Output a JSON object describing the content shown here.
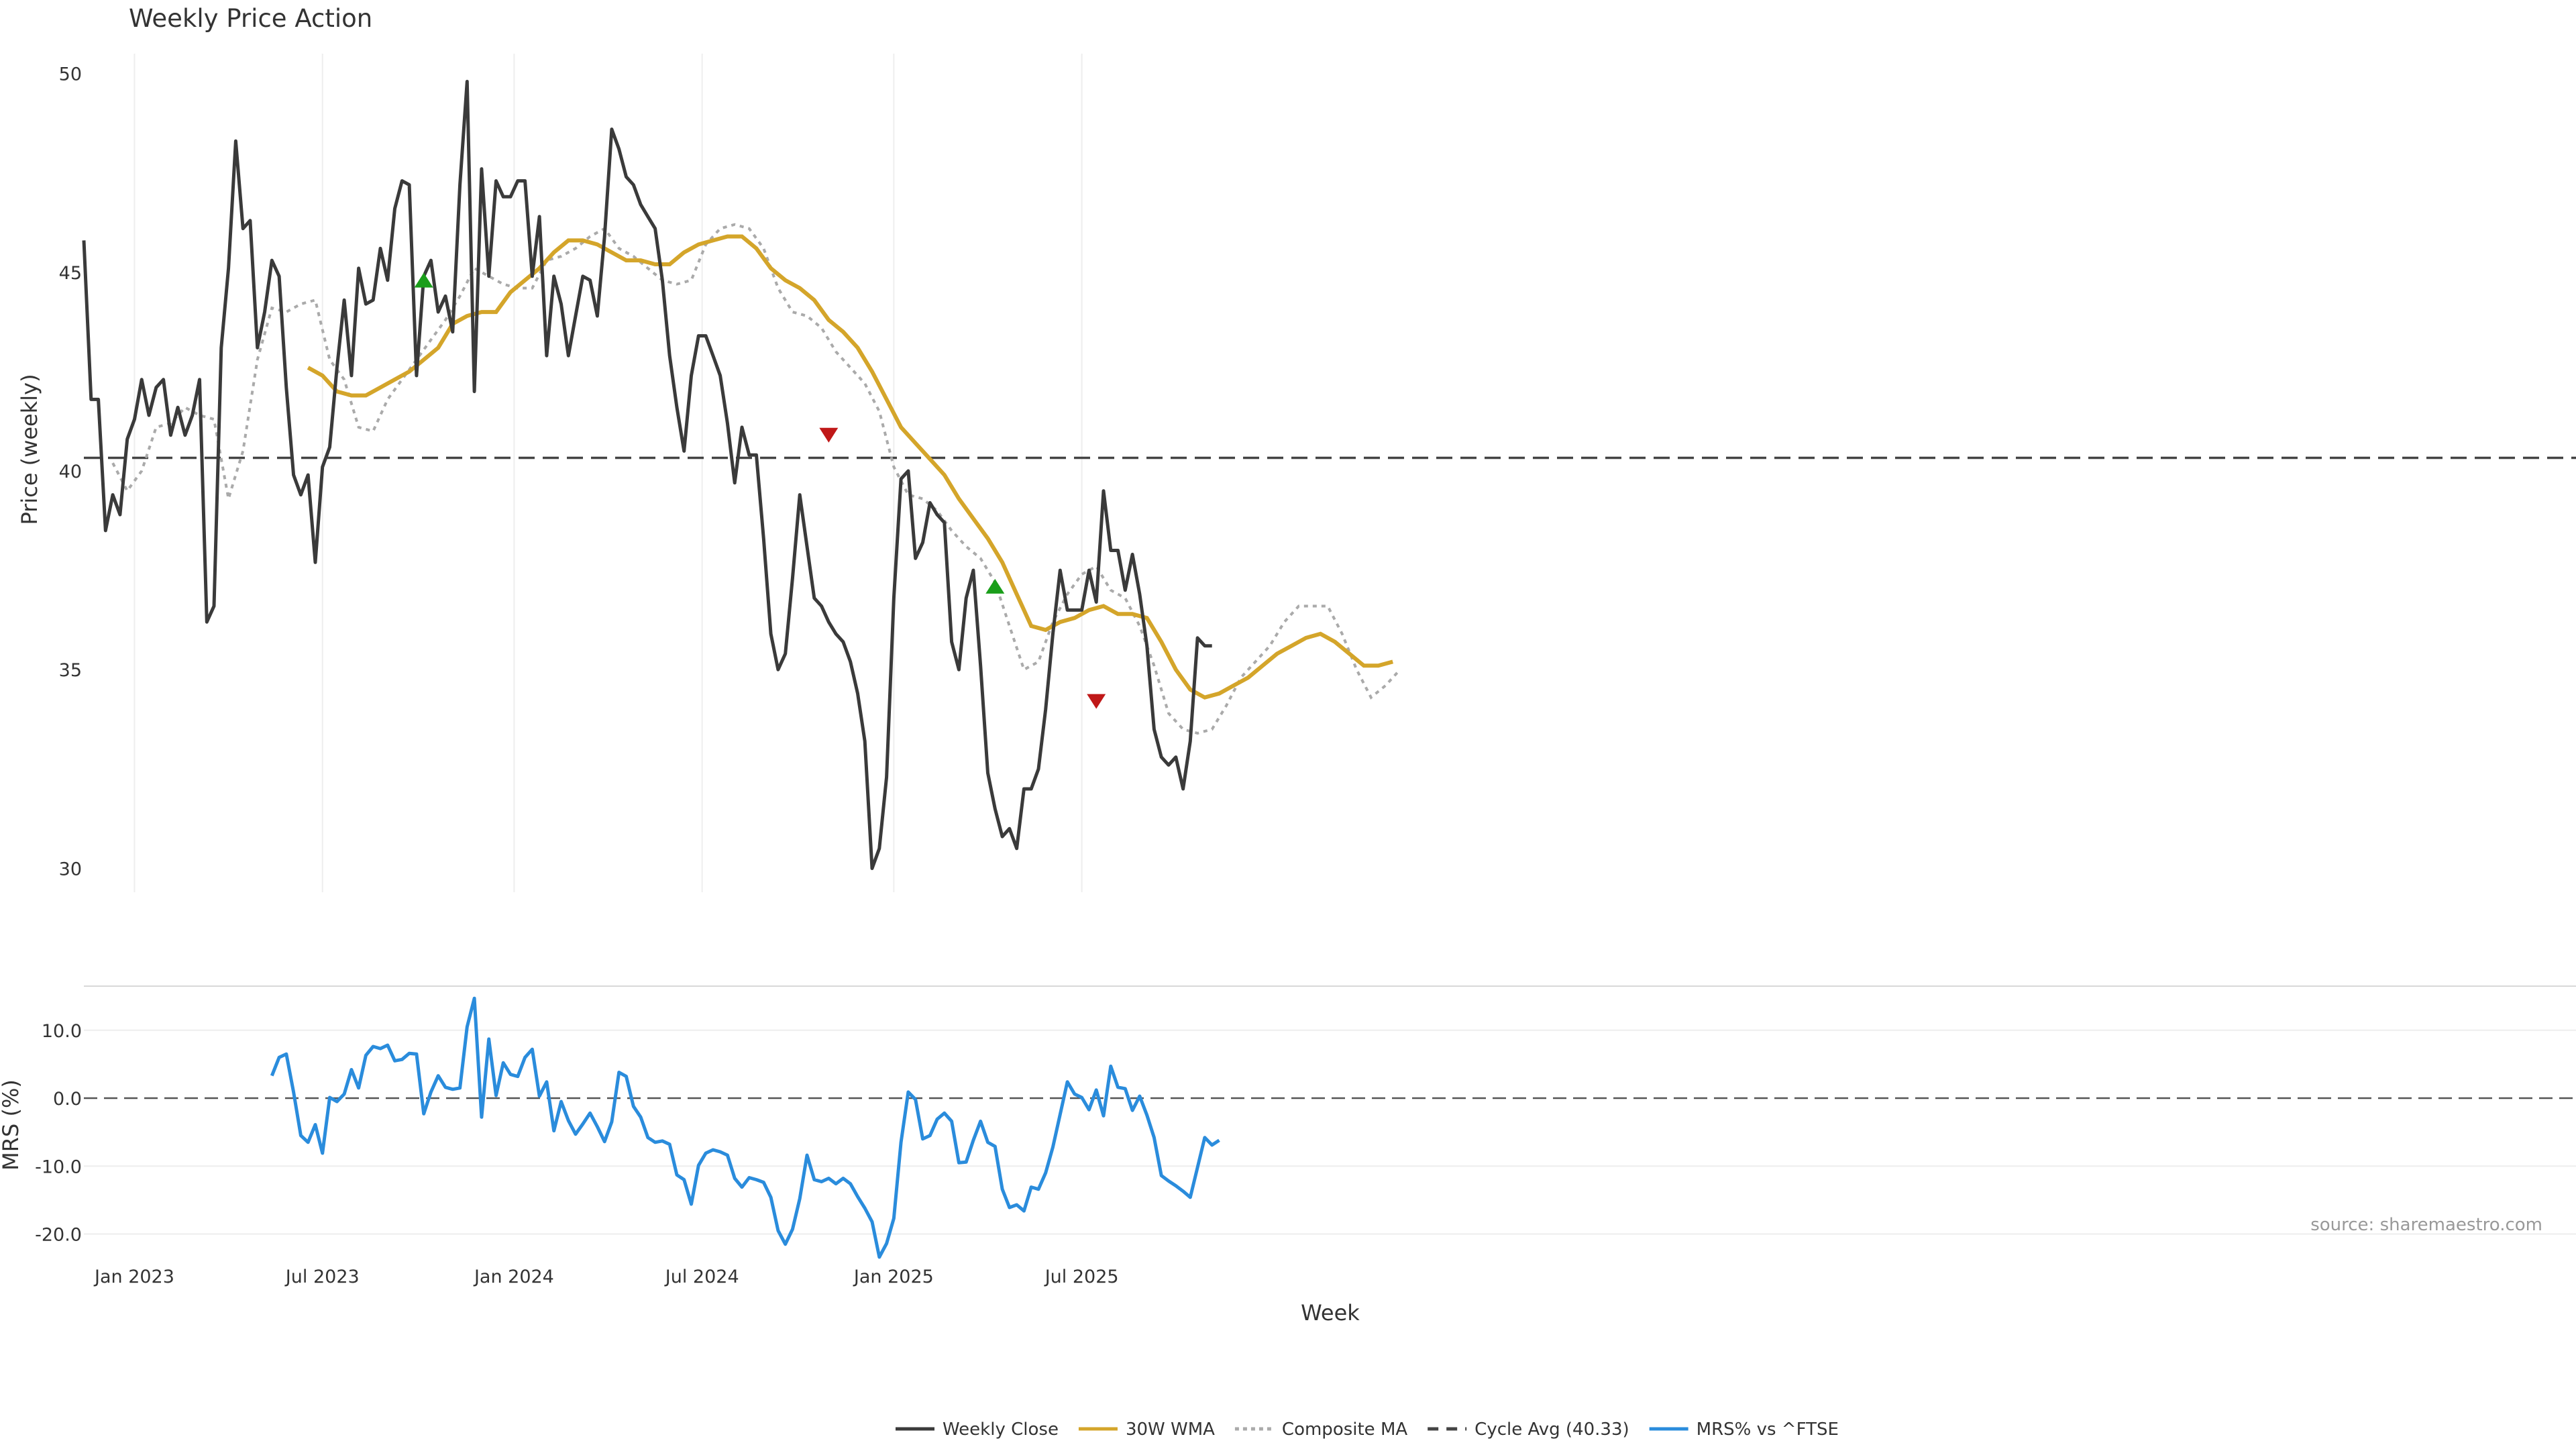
{
  "chart_data": {
    "type": "line",
    "title": "Weekly Price Action",
    "xlabel": "Week",
    "x_tick_labels": [
      "Jan 2023",
      "Jul 2023",
      "Jan 2024",
      "Jul 2024",
      "Jan 2025",
      "Jul 2025"
    ],
    "source": "source: sharemaestro.com",
    "price_panel": {
      "ylabel": "Price (weekly)",
      "ylim": [
        29.4,
        50.5
      ],
      "y_ticks": [
        30,
        35,
        40,
        45,
        50
      ],
      "cycle_avg": 40.33,
      "weekly_close": [
        45.8,
        41.8,
        41.8,
        38.5,
        39.4,
        38.9,
        40.8,
        41.3,
        42.3,
        41.4,
        42.1,
        42.3,
        40.9,
        41.6,
        40.9,
        41.4,
        42.3,
        36.2,
        36.6,
        43.1,
        45.1,
        48.3,
        46.1,
        46.3,
        43.1,
        44.0,
        45.3,
        44.9,
        42.1,
        39.9,
        39.4,
        39.9,
        37.7,
        40.1,
        40.6,
        42.6,
        44.3,
        42.4,
        45.1,
        44.2,
        44.3,
        45.6,
        44.8,
        46.6,
        47.3,
        47.2,
        42.4,
        44.9,
        45.3,
        44.0,
        44.4,
        43.5,
        47.2,
        49.8,
        42.0,
        47.6,
        44.9,
        47.3,
        46.9,
        46.9,
        47.3,
        47.3,
        44.9,
        46.4,
        42.9,
        44.9,
        44.2,
        42.9,
        43.9,
        44.9,
        44.8,
        43.9,
        45.9,
        48.6,
        48.1,
        47.4,
        47.2,
        46.7,
        46.4,
        46.1,
        44.8,
        42.9,
        41.6,
        40.5,
        42.4,
        43.4,
        43.4,
        42.9,
        42.4,
        41.2,
        39.7,
        41.1,
        40.4,
        40.4,
        38.3,
        35.9,
        35.0,
        35.4,
        37.3,
        39.4,
        38.1,
        36.8,
        36.6,
        36.2,
        35.9,
        35.7,
        35.2,
        34.4,
        33.2,
        30.0,
        30.5,
        32.3,
        36.8,
        39.8,
        40.0,
        37.8,
        38.2,
        39.2,
        38.9,
        38.7,
        35.7,
        35.0,
        36.8,
        37.5,
        35.1,
        32.4,
        31.5,
        30.8,
        31.0,
        30.5,
        32.0,
        32.0,
        32.5,
        34.0,
        35.9,
        37.5,
        36.5,
        36.5,
        36.5,
        37.5,
        36.7,
        39.5,
        38.0,
        38.0,
        37.0,
        37.9,
        36.9,
        35.6,
        33.5,
        32.8,
        32.6,
        32.8,
        32.0,
        33.2,
        35.8,
        35.6,
        35.6
      ],
      "wma_30w": [
        [
          31,
          42.6
        ],
        [
          33,
          42.4
        ],
        [
          35,
          42.0
        ],
        [
          37,
          41.9
        ],
        [
          39,
          41.9
        ],
        [
          41,
          42.1
        ],
        [
          43,
          42.3
        ],
        [
          45,
          42.5
        ],
        [
          47,
          42.8
        ],
        [
          49,
          43.1
        ],
        [
          51,
          43.7
        ],
        [
          53,
          43.9
        ],
        [
          55,
          44.0
        ],
        [
          57,
          44.0
        ],
        [
          59,
          44.5
        ],
        [
          61,
          44.8
        ],
        [
          63,
          45.1
        ],
        [
          65,
          45.5
        ],
        [
          67,
          45.8
        ],
        [
          69,
          45.8
        ],
        [
          71,
          45.7
        ],
        [
          73,
          45.5
        ],
        [
          75,
          45.3
        ],
        [
          77,
          45.3
        ],
        [
          79,
          45.2
        ],
        [
          81,
          45.2
        ],
        [
          83,
          45.5
        ],
        [
          85,
          45.7
        ],
        [
          87,
          45.8
        ],
        [
          89,
          45.9
        ],
        [
          91,
          45.9
        ],
        [
          93,
          45.6
        ],
        [
          95,
          45.1
        ],
        [
          97,
          44.8
        ],
        [
          99,
          44.6
        ],
        [
          101,
          44.3
        ],
        [
          103,
          43.8
        ],
        [
          105,
          43.5
        ],
        [
          107,
          43.1
        ],
        [
          109,
          42.5
        ],
        [
          111,
          41.8
        ],
        [
          113,
          41.1
        ],
        [
          115,
          40.7
        ],
        [
          117,
          40.3
        ],
        [
          119,
          39.9
        ],
        [
          121,
          39.3
        ],
        [
          123,
          38.8
        ],
        [
          125,
          38.3
        ],
        [
          127,
          37.7
        ],
        [
          129,
          36.9
        ],
        [
          131,
          36.1
        ],
        [
          133,
          36.0
        ],
        [
          135,
          36.2
        ],
        [
          137,
          36.3
        ],
        [
          139,
          36.5
        ],
        [
          141,
          36.6
        ],
        [
          143,
          36.4
        ],
        [
          145,
          36.4
        ],
        [
          147,
          36.3
        ],
        [
          149,
          35.7
        ],
        [
          151,
          35.0
        ],
        [
          153,
          34.5
        ],
        [
          155,
          34.3
        ],
        [
          157,
          34.4
        ],
        [
          159,
          34.6
        ],
        [
          161,
          34.8
        ],
        [
          163,
          35.1
        ],
        [
          165,
          35.4
        ],
        [
          167,
          35.6
        ],
        [
          169,
          35.8
        ],
        [
          171,
          35.9
        ],
        [
          173,
          35.7
        ],
        [
          175,
          35.4
        ],
        [
          177,
          35.1
        ],
        [
          179,
          35.1
        ],
        [
          181,
          35.2
        ]
      ],
      "composite_ma": [
        [
          4,
          40.2
        ],
        [
          6,
          39.5
        ],
        [
          8,
          40.0
        ],
        [
          10,
          41.1
        ],
        [
          12,
          41.2
        ],
        [
          14,
          41.6
        ],
        [
          16,
          41.4
        ],
        [
          18,
          41.3
        ],
        [
          20,
          39.3
        ],
        [
          22,
          40.5
        ],
        [
          24,
          42.8
        ],
        [
          26,
          44.1
        ],
        [
          28,
          44.0
        ],
        [
          30,
          44.2
        ],
        [
          32,
          44.3
        ],
        [
          34,
          42.8
        ],
        [
          36,
          42.3
        ],
        [
          38,
          41.1
        ],
        [
          40,
          41.0
        ],
        [
          42,
          41.8
        ],
        [
          44,
          42.3
        ],
        [
          46,
          42.8
        ],
        [
          48,
          43.3
        ],
        [
          50,
          43.8
        ],
        [
          52,
          44.4
        ],
        [
          54,
          45.1
        ],
        [
          56,
          44.9
        ],
        [
          58,
          44.7
        ],
        [
          60,
          44.6
        ],
        [
          62,
          44.6
        ],
        [
          64,
          45.3
        ],
        [
          66,
          45.4
        ],
        [
          68,
          45.6
        ],
        [
          70,
          45.9
        ],
        [
          72,
          46.1
        ],
        [
          74,
          45.6
        ],
        [
          76,
          45.4
        ],
        [
          78,
          45.1
        ],
        [
          80,
          44.8
        ],
        [
          82,
          44.7
        ],
        [
          84,
          44.8
        ],
        [
          86,
          45.7
        ],
        [
          88,
          46.1
        ],
        [
          90,
          46.2
        ],
        [
          92,
          46.1
        ],
        [
          94,
          45.6
        ],
        [
          96,
          44.6
        ],
        [
          98,
          44.0
        ],
        [
          100,
          43.9
        ],
        [
          102,
          43.6
        ],
        [
          104,
          43.0
        ],
        [
          106,
          42.6
        ],
        [
          108,
          42.2
        ],
        [
          110,
          41.5
        ],
        [
          112,
          40.1
        ],
        [
          114,
          39.4
        ],
        [
          116,
          39.3
        ],
        [
          118,
          39.0
        ],
        [
          120,
          38.5
        ],
        [
          122,
          38.1
        ],
        [
          124,
          37.8
        ],
        [
          126,
          37.2
        ],
        [
          128,
          36.1
        ],
        [
          130,
          35.0
        ],
        [
          132,
          35.2
        ],
        [
          134,
          36.2
        ],
        [
          136,
          36.9
        ],
        [
          138,
          37.4
        ],
        [
          140,
          37.6
        ],
        [
          142,
          37.0
        ],
        [
          144,
          36.8
        ],
        [
          146,
          36.1
        ],
        [
          148,
          35.1
        ],
        [
          150,
          33.9
        ],
        [
          152,
          33.5
        ],
        [
          154,
          33.4
        ],
        [
          156,
          33.5
        ],
        [
          158,
          34.1
        ],
        [
          160,
          34.8
        ],
        [
          162,
          35.2
        ],
        [
          164,
          35.6
        ],
        [
          166,
          36.2
        ],
        [
          168,
          36.6
        ],
        [
          170,
          36.6
        ],
        [
          172,
          36.6
        ],
        [
          174,
          35.9
        ],
        [
          176,
          35.0
        ],
        [
          178,
          34.3
        ],
        [
          180,
          34.6
        ],
        [
          182,
          35.0
        ]
      ],
      "signals": [
        {
          "type": "buy",
          "week": 47,
          "price": 44.8,
          "color": "#1a9e1a"
        },
        {
          "type": "sell",
          "week": 103,
          "price": 40.9,
          "color": "#c01818"
        },
        {
          "type": "buy",
          "week": 126,
          "price": 37.1,
          "color": "#1a9e1a"
        },
        {
          "type": "sell",
          "week": 140,
          "price": 34.2,
          "color": "#c01818"
        }
      ]
    },
    "mrs_panel": {
      "ylabel": "MRS (%)",
      "ylim": [
        -24,
        16
      ],
      "y_ticks": [
        "10.0",
        "0.0",
        "-10.0",
        "-20.0"
      ],
      "y_tick_values": [
        10,
        0,
        -10,
        -20
      ],
      "start_week": 26,
      "values": [
        3.3,
        6.0,
        6.5,
        0.9,
        -5.5,
        -6.5,
        -3.9,
        -8.1,
        0.1,
        -0.5,
        0.6,
        4.2,
        1.5,
        6.3,
        7.6,
        7.3,
        7.8,
        5.5,
        5.7,
        6.6,
        6.5,
        -2.3,
        0.9,
        3.3,
        1.6,
        1.3,
        1.5,
        10.5,
        14.7,
        -2.8,
        8.7,
        0.4,
        5.2,
        3.5,
        3.2,
        6.0,
        7.2,
        0.3,
        2.4,
        -4.8,
        -0.5,
        -3.3,
        -5.3,
        -3.8,
        -2.2,
        -4.2,
        -6.4,
        -3.5,
        3.8,
        3.2,
        -1.2,
        -2.8,
        -5.8,
        -6.5,
        -6.3,
        -6.8,
        -11.3,
        -12.0,
        -15.6,
        -9.9,
        -8.1,
        -7.6,
        -7.9,
        -8.4,
        -11.8,
        -13.1,
        -11.7,
        -12.0,
        -12.4,
        -14.6,
        -19.5,
        -21.5,
        -19.3,
        -14.8,
        -8.4,
        -12.0,
        -12.3,
        -11.8,
        -12.6,
        -11.8,
        -12.6,
        -14.5,
        -16.2,
        -18.2,
        -23.4,
        -21.4,
        -17.7,
        -6.5,
        0.9,
        -0.2,
        -6.0,
        -5.5,
        -3.1,
        -2.2,
        -3.4,
        -9.5,
        -9.4,
        -6.2,
        -3.4,
        -6.5,
        -7.1,
        -13.4,
        -16.1,
        -15.7,
        -16.6,
        -13.1,
        -13.4,
        -11.0,
        -7.2,
        -2.4,
        2.4,
        0.6,
        0.1,
        -1.7,
        1.2,
        -2.6,
        4.7,
        1.6,
        1.4,
        -1.8,
        0.3,
        -2.5,
        -5.8,
        -11.4,
        -12.2,
        -12.9,
        -13.7,
        -14.6,
        -10.2,
        -5.8,
        -6.9,
        -6.2
      ]
    },
    "legend": [
      {
        "label": "Weekly Close",
        "style": "solid",
        "color": "#3a3a3a"
      },
      {
        "label": "30W WMA",
        "style": "solid",
        "color": "#d4a52a"
      },
      {
        "label": "Composite MA",
        "style": "dotted",
        "color": "#aaaaaa"
      },
      {
        "label": "Cycle Avg (40.33)",
        "style": "dashed",
        "color": "#444444"
      },
      {
        "label": "MRS% vs ^FTSE",
        "style": "solid",
        "color": "#2a8cdc"
      }
    ]
  }
}
